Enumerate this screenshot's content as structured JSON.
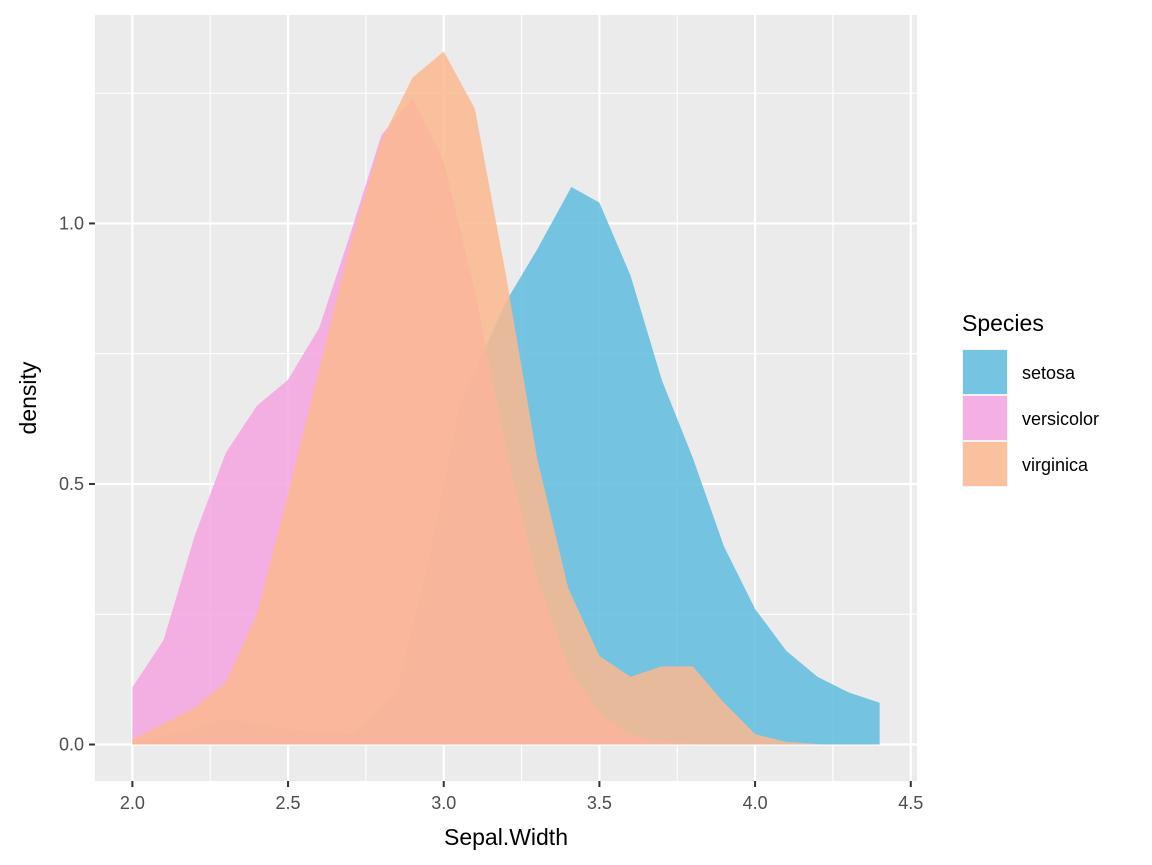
{
  "chart_data": {
    "type": "area",
    "xlabel": "Sepal.Width",
    "ylabel": "density",
    "xlim": [
      1.88,
      4.52
    ],
    "ylim": [
      -0.07,
      1.4
    ],
    "x_ticks": [
      "2.0",
      "2.5",
      "3.0",
      "3.5",
      "4.0",
      "4.5"
    ],
    "y_ticks": [
      "0.0",
      "0.5",
      "1.0"
    ],
    "grid": true,
    "legend": {
      "title": "Species",
      "placement": "right"
    },
    "series": [
      {
        "name": "setosa",
        "color": "#5ebcdf",
        "points": [
          [
            2.0,
            0.003
          ],
          [
            2.2,
            0.03
          ],
          [
            2.3,
            0.05
          ],
          [
            2.5,
            0.03
          ],
          [
            2.7,
            0.02
          ],
          [
            2.85,
            0.1
          ],
          [
            2.95,
            0.35
          ],
          [
            3.05,
            0.65
          ],
          [
            3.2,
            0.85
          ],
          [
            3.3,
            0.95
          ],
          [
            3.41,
            1.07
          ],
          [
            3.5,
            1.04
          ],
          [
            3.6,
            0.9
          ],
          [
            3.7,
            0.7
          ],
          [
            3.8,
            0.55
          ],
          [
            3.9,
            0.38
          ],
          [
            4.0,
            0.26
          ],
          [
            4.1,
            0.18
          ],
          [
            4.2,
            0.13
          ],
          [
            4.3,
            0.1
          ],
          [
            4.4,
            0.08
          ]
        ]
      },
      {
        "name": "versicolor",
        "color": "#f4a4e0",
        "points": [
          [
            2.0,
            0.11
          ],
          [
            2.1,
            0.2
          ],
          [
            2.2,
            0.4
          ],
          [
            2.3,
            0.56
          ],
          [
            2.4,
            0.65
          ],
          [
            2.5,
            0.7
          ],
          [
            2.6,
            0.8
          ],
          [
            2.7,
            0.98
          ],
          [
            2.8,
            1.17
          ],
          [
            2.9,
            1.24
          ],
          [
            3.0,
            1.12
          ],
          [
            3.1,
            0.87
          ],
          [
            3.2,
            0.57
          ],
          [
            3.3,
            0.32
          ],
          [
            3.4,
            0.15
          ],
          [
            3.5,
            0.06
          ],
          [
            3.6,
            0.02
          ],
          [
            3.7,
            0.006
          ],
          [
            3.8,
            0.002
          ]
        ]
      },
      {
        "name": "virginica",
        "color": "#fab98e",
        "points": [
          [
            2.0,
            0.01
          ],
          [
            2.1,
            0.04
          ],
          [
            2.2,
            0.07
          ],
          [
            2.3,
            0.12
          ],
          [
            2.4,
            0.25
          ],
          [
            2.5,
            0.48
          ],
          [
            2.6,
            0.72
          ],
          [
            2.7,
            0.96
          ],
          [
            2.8,
            1.16
          ],
          [
            2.9,
            1.28
          ],
          [
            3.0,
            1.33
          ],
          [
            3.1,
            1.22
          ],
          [
            3.2,
            0.9
          ],
          [
            3.3,
            0.55
          ],
          [
            3.4,
            0.3
          ],
          [
            3.5,
            0.17
          ],
          [
            3.6,
            0.13
          ],
          [
            3.7,
            0.15
          ],
          [
            3.8,
            0.15
          ],
          [
            3.9,
            0.08
          ],
          [
            4.0,
            0.02
          ],
          [
            4.1,
            0.005
          ],
          [
            4.2,
            0.001
          ]
        ]
      }
    ]
  }
}
